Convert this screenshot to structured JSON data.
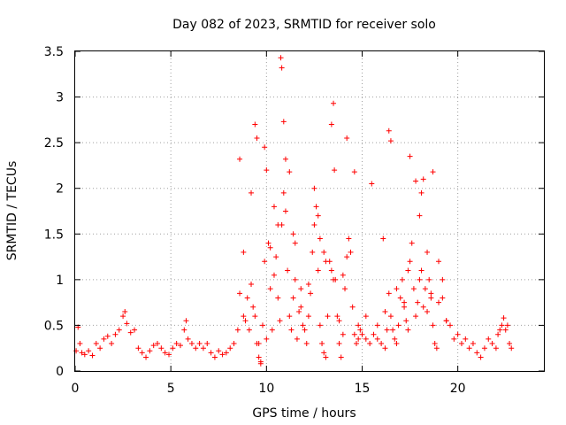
{
  "chart_data": {
    "type": "scatter",
    "title": "Day 082 of 2023, SRMTID for receiver solo",
    "xlabel": "GPS time / hours",
    "ylabel": "SRMTID / TECUs",
    "xlim": [
      0,
      24.5
    ],
    "ylim": [
      0,
      3.5
    ],
    "x_ticks": [
      0,
      5,
      10,
      15,
      20
    ],
    "y_ticks": [
      0,
      0.5,
      1,
      1.5,
      2,
      2.5,
      3,
      3.5
    ],
    "x_tick_labels": [
      "0",
      "5",
      "10",
      "15",
      "20"
    ],
    "y_tick_labels": [
      "0",
      "0.5",
      "1",
      "1.5",
      "2",
      "2.5",
      "3",
      "3.5"
    ],
    "grid": true,
    "marker": "+",
    "color": "#ff0000",
    "series": [
      {
        "name": "SRMTID",
        "x": [
          0.05,
          0.15,
          0.25,
          0.35,
          0.5,
          0.7,
          0.9,
          1.1,
          1.3,
          1.5,
          1.7,
          1.9,
          2.1,
          2.3,
          2.5,
          2.6,
          2.7,
          2.9,
          3.1,
          3.3,
          3.5,
          3.7,
          3.9,
          4.1,
          4.3,
          4.5,
          4.7,
          4.9,
          5.1,
          5.3,
          5.5,
          5.7,
          5.8,
          5.9,
          6.1,
          6.3,
          6.5,
          6.7,
          6.9,
          7.1,
          7.3,
          7.5,
          7.7,
          7.9,
          8.1,
          8.3,
          8.5,
          8.6,
          8.8,
          8.9,
          9.0,
          9.1,
          9.2,
          9.3,
          9.4,
          9.5,
          9.6,
          9.7,
          9.8,
          9.9,
          10.0,
          10.1,
          10.2,
          10.3,
          10.4,
          10.5,
          10.6,
          10.7,
          10.75,
          10.8,
          10.9,
          11.0,
          11.1,
          11.2,
          11.3,
          11.4,
          11.5,
          11.6,
          11.7,
          11.8,
          11.9,
          12.0,
          12.1,
          12.2,
          12.3,
          12.4,
          12.5,
          12.6,
          12.7,
          12.8,
          12.9,
          13.0,
          13.1,
          13.2,
          13.3,
          13.4,
          13.5,
          13.55,
          13.6,
          13.7,
          13.8,
          13.9,
          14.0,
          14.1,
          14.2,
          14.3,
          14.4,
          14.5,
          14.6,
          14.7,
          14.8,
          14.9,
          15.0,
          15.2,
          15.4,
          15.6,
          15.8,
          16.0,
          16.2,
          16.3,
          16.4,
          16.5,
          16.6,
          16.7,
          16.8,
          16.9,
          17.0,
          17.1,
          17.2,
          17.3,
          17.4,
          17.5,
          17.6,
          17.7,
          17.8,
          17.9,
          18.0,
          18.1,
          18.2,
          18.3,
          18.4,
          18.5,
          18.6,
          18.7,
          18.8,
          18.9,
          19.0,
          19.2,
          19.4,
          19.6,
          19.8,
          20.0,
          20.2,
          20.4,
          20.6,
          20.8,
          21.0,
          21.2,
          21.4,
          21.6,
          21.8,
          22.0,
          22.1,
          22.2,
          22.3,
          22.4,
          22.5,
          22.6,
          22.7,
          22.8,
          9.4,
          9.5,
          9.9,
          10.0,
          10.8,
          10.9,
          11.0,
          11.2,
          11.4,
          12.5,
          12.7,
          12.8,
          13.0,
          13.1,
          13.4,
          13.5,
          14.2,
          14.6,
          15.5,
          16.1,
          16.4,
          16.5,
          17.5,
          17.8,
          18.0,
          18.1,
          18.2,
          18.7,
          19.0,
          19.2,
          8.6,
          8.8,
          9.2,
          9.6,
          9.7,
          10.2,
          10.4,
          10.6,
          11.5,
          11.8,
          12.2,
          13.8,
          14.0,
          14.8,
          15.2,
          15.8,
          16.2,
          16.8,
          17.2,
          17.4,
          18.4,
          18.6,
          19.4
        ],
        "y": [
          0.22,
          0.48,
          0.3,
          0.2,
          0.18,
          0.22,
          0.17,
          0.3,
          0.25,
          0.35,
          0.38,
          0.3,
          0.4,
          0.45,
          0.6,
          0.65,
          0.52,
          0.42,
          0.45,
          0.25,
          0.2,
          0.15,
          0.22,
          0.28,
          0.3,
          0.25,
          0.2,
          0.18,
          0.25,
          0.3,
          0.28,
          0.45,
          0.55,
          0.35,
          0.3,
          0.25,
          0.3,
          0.25,
          0.3,
          0.2,
          0.15,
          0.22,
          0.18,
          0.2,
          0.25,
          0.3,
          0.45,
          0.85,
          0.6,
          0.55,
          0.8,
          0.45,
          0.95,
          0.7,
          0.6,
          0.3,
          0.15,
          0.08,
          0.5,
          1.2,
          0.35,
          1.4,
          0.9,
          0.45,
          1.05,
          1.25,
          0.8,
          0.55,
          3.43,
          1.6,
          1.95,
          1.75,
          1.1,
          0.6,
          0.45,
          0.8,
          1.0,
          0.35,
          0.65,
          0.9,
          0.5,
          0.45,
          0.3,
          0.6,
          0.85,
          1.3,
          1.6,
          1.8,
          1.1,
          0.5,
          0.3,
          0.2,
          0.15,
          0.6,
          1.2,
          2.7,
          2.93,
          2.2,
          1.0,
          0.6,
          0.3,
          0.15,
          0.4,
          0.9,
          1.25,
          1.45,
          1.3,
          0.7,
          0.4,
          0.3,
          0.35,
          0.45,
          0.4,
          0.35,
          0.3,
          0.4,
          0.5,
          0.3,
          0.25,
          0.45,
          2.63,
          0.6,
          0.45,
          0.35,
          0.3,
          0.5,
          0.8,
          1.0,
          0.7,
          0.55,
          0.45,
          1.2,
          1.4,
          0.9,
          0.6,
          0.75,
          1.0,
          1.1,
          0.7,
          0.9,
          1.3,
          1.0,
          0.8,
          0.5,
          0.3,
          0.25,
          0.75,
          1.0,
          0.55,
          0.5,
          0.35,
          0.4,
          0.3,
          0.35,
          0.25,
          0.3,
          0.2,
          0.15,
          0.25,
          0.35,
          0.3,
          0.25,
          0.4,
          0.45,
          0.5,
          0.58,
          0.45,
          0.5,
          0.3,
          0.25,
          2.7,
          2.55,
          2.45,
          2.2,
          3.32,
          2.73,
          2.32,
          2.18,
          1.5,
          2.0,
          1.7,
          1.45,
          1.3,
          1.2,
          1.1,
          1.0,
          2.55,
          2.18,
          2.05,
          1.45,
          0.85,
          2.52,
          2.35,
          2.08,
          1.7,
          1.95,
          2.1,
          2.18,
          1.2,
          0.8,
          2.32,
          1.3,
          1.95,
          0.3,
          0.1,
          1.35,
          1.8,
          1.6,
          1.4,
          0.7,
          0.95,
          0.55,
          1.05,
          0.5,
          0.6,
          0.35,
          0.65,
          0.9,
          0.75,
          1.1,
          0.65,
          0.85,
          0.55
        ]
      }
    ]
  }
}
